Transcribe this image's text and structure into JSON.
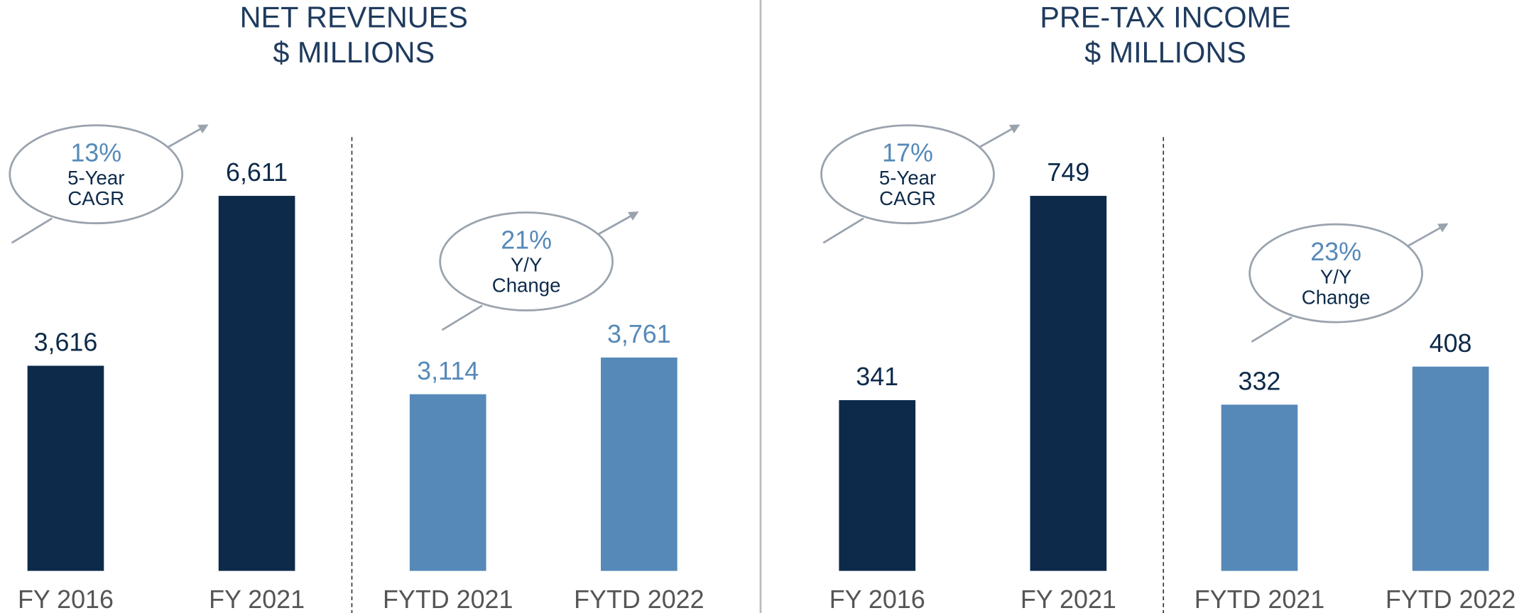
{
  "chart_data": [
    {
      "type": "bar",
      "title": "NET REVENUES",
      "subtitle": "$ MILLIONS",
      "categories": [
        "FY 2016",
        "FY 2021",
        "FYTD 2021",
        "FYTD 2022"
      ],
      "values": [
        3616,
        6611,
        3114,
        3761
      ],
      "value_labels": [
        "3,616",
        "6,611",
        "3,114",
        "3,761"
      ],
      "colors": [
        "#0d2a4a",
        "#0d2a4a",
        "#5689b8",
        "#5689b8"
      ],
      "label_colors": [
        "#0d2a4a",
        "#0d2a4a",
        "#5689b8",
        "#5689b8"
      ],
      "annotations": [
        {
          "text": "13%",
          "lines": [
            "5-Year",
            "CAGR"
          ]
        },
        {
          "text": "21%",
          "lines": [
            "Y/Y",
            "Change"
          ]
        }
      ]
    },
    {
      "type": "bar",
      "title": "PRE-TAX INCOME",
      "subtitle": "$ MILLIONS",
      "categories": [
        "FY 2016",
        "FY 2021",
        "FYTD 2021",
        "FYTD 2022"
      ],
      "values": [
        341,
        749,
        332,
        408
      ],
      "value_labels": [
        "341",
        "749",
        "332",
        "408"
      ],
      "colors": [
        "#0d2a4a",
        "#0d2a4a",
        "#5689b8",
        "#5689b8"
      ],
      "label_colors": [
        "#0d2a4a",
        "#0d2a4a",
        "#0d2a4a",
        "#0d2a4a"
      ],
      "annotations": [
        {
          "text": "17%",
          "lines": [
            "5-Year",
            "CAGR"
          ]
        },
        {
          "text": "23%",
          "lines": [
            "Y/Y",
            "Change"
          ]
        }
      ]
    }
  ]
}
